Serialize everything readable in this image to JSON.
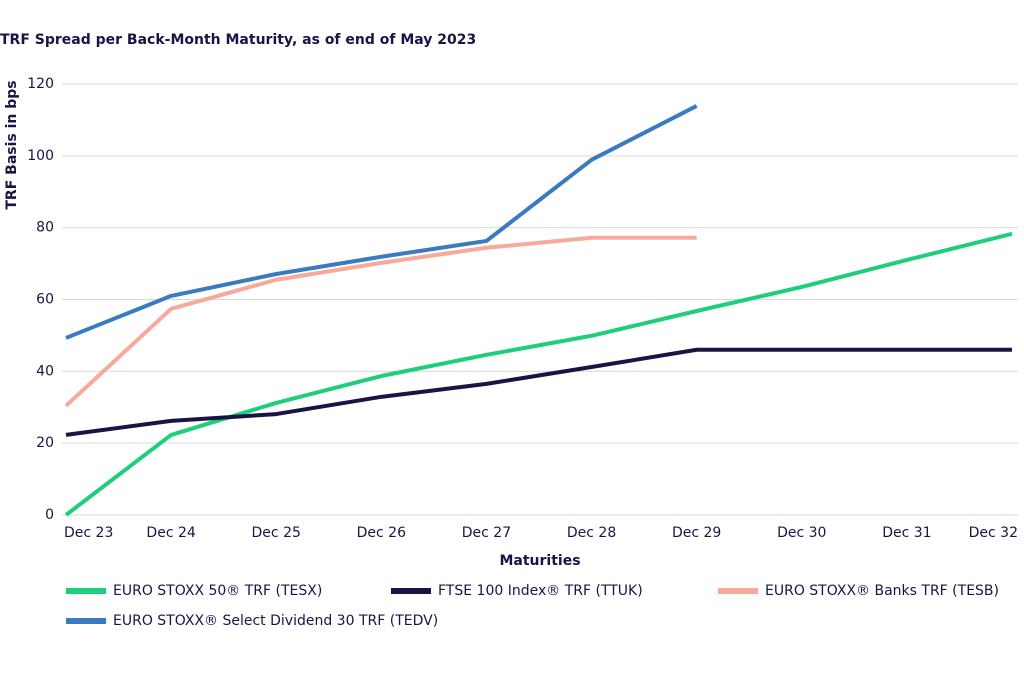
{
  "chart_data": {
    "type": "line",
    "title": "TRF Spread per Back-Month Maturity, as of end of May 2023",
    "y_label": "TRF Basis in bps",
    "x_label": "Maturities",
    "categories": [
      "Dec 23",
      "Dec 24",
      "Dec 25",
      "Dec 26",
      "Dec 27",
      "Dec 28",
      "Dec 29",
      "Dec 30",
      "Dec 31",
      "Dec 32"
    ],
    "ylim": [
      0,
      120
    ],
    "yticks": [
      0,
      20,
      40,
      60,
      80,
      100,
      120
    ],
    "grid": true,
    "series": [
      {
        "name": "EURO STOXX 50® TRF (TESX)",
        "color": "#1fce7a",
        "values": [
          0,
          22.3,
          31.2,
          38.7,
          44.6,
          49.9,
          56.8,
          63.5,
          71,
          78.3
        ]
      },
      {
        "name": "FTSE 100 Index® TRF (TTUK)",
        "color": "#1a1446",
        "values": [
          22.3,
          26.2,
          28.1,
          32.9,
          36.5,
          41.2,
          46,
          46,
          46,
          46
        ]
      },
      {
        "name": "EURO STOXX® Banks TRF (TESB)",
        "color": "#f7a99c",
        "values": [
          30.4,
          57.4,
          65.5,
          70.2,
          74.4,
          77.2,
          77.2,
          null,
          null,
          null
        ]
      },
      {
        "name": "EURO STOXX® Select Dividend 30 TRF (TEDV)",
        "color": "#3a7bbf",
        "values": [
          49.3,
          61,
          67.1,
          71.9,
          76.3,
          98.9,
          113.9,
          null,
          null,
          null
        ]
      }
    ]
  }
}
